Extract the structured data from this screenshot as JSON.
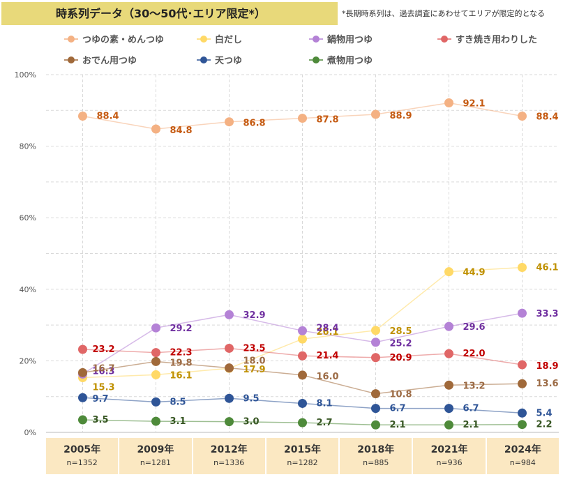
{
  "title": "時系列データ（30～50代･エリア限定*）",
  "note": "*長期時系列は、過去調査にあわせてエリアが限定的となる",
  "chart_data": {
    "type": "line",
    "x": [
      "2005年",
      "2009年",
      "2012年",
      "2015年",
      "2018年",
      "2021年",
      "2024年"
    ],
    "n_labels": [
      "n=1352",
      "n=1281",
      "n=1336",
      "n=1282",
      "n=885",
      "n=936",
      "n=984"
    ],
    "ylim": [
      0,
      100
    ],
    "yticks": [
      0,
      20,
      40,
      60,
      80,
      100
    ],
    "ytick_labels": [
      "0%",
      "20%",
      "40%",
      "60%",
      "80%",
      "100%"
    ],
    "grid": true,
    "legend": "top",
    "series": [
      {
        "name": "つゆの素・めんつゆ",
        "color": "#f4b183",
        "label_color": "#c55a11",
        "values": [
          88.4,
          84.8,
          86.8,
          87.8,
          88.9,
          92.1,
          88.4
        ],
        "labels": [
          "88.4",
          "84.8",
          "86.8",
          "87.8",
          "88.9",
          "92.1",
          "88.4"
        ]
      },
      {
        "name": "白だし",
        "color": "#ffd966",
        "label_color": "#bf9000",
        "values": [
          15.3,
          16.1,
          17.9,
          26.1,
          28.5,
          44.9,
          46.1
        ],
        "labels": [
          "15.3",
          "16.1",
          "17.9",
          "26.1",
          "28.5",
          "44.9",
          "46.1"
        ]
      },
      {
        "name": "鍋物用つゆ",
        "color": "#b482d6",
        "label_color": "#7030a0",
        "values": [
          16.3,
          29.2,
          32.9,
          28.4,
          25.2,
          29.6,
          33.3
        ],
        "labels": [
          "16.3",
          "29.2",
          "32.9",
          "28.4",
          "25.2",
          "29.6",
          "33.3"
        ]
      },
      {
        "name": "すき焼き用わりした",
        "color": "#e06666",
        "label_color": "#c00000",
        "values": [
          23.2,
          22.3,
          23.5,
          21.4,
          20.9,
          22.0,
          18.9
        ],
        "labels": [
          "23.2",
          "22.3",
          "23.5",
          "21.4",
          "20.9",
          "22.0",
          "18.9"
        ]
      },
      {
        "name": "おでん用つゆ",
        "color": "#a0693a",
        "label_color": "#9c6b45",
        "values": [
          16.7,
          19.8,
          18.0,
          16.0,
          10.8,
          13.2,
          13.6
        ],
        "labels": [
          "16.7",
          "19.8",
          "18.0",
          "16.0",
          "10.8",
          "13.2",
          "13.6"
        ]
      },
      {
        "name": "天つゆ",
        "color": "#2f5597",
        "label_color": "#2f5597",
        "values": [
          9.7,
          8.5,
          9.5,
          8.1,
          6.7,
          6.7,
          5.4
        ],
        "labels": [
          "9.7",
          "8.5",
          "9.5",
          "8.1",
          "6.7",
          "6.7",
          "5.4"
        ]
      },
      {
        "name": "煮物用つゆ",
        "color": "#4e8a3a",
        "label_color": "#375623",
        "values": [
          3.5,
          3.1,
          3.0,
          2.7,
          2.1,
          2.1,
          2.2
        ],
        "labels": [
          "3.5",
          "3.1",
          "3.0",
          "2.7",
          "2.1",
          "2.1",
          "2.2"
        ]
      }
    ]
  }
}
